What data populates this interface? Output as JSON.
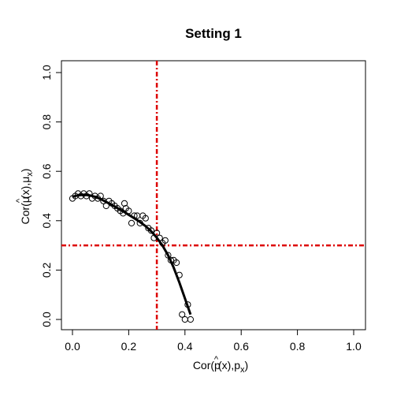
{
  "chart_data": {
    "type": "scatter",
    "title": "Setting 1",
    "xlabel": {
      "parts": [
        "Cor(",
        "p",
        "^",
        "(x),p",
        "x",
        ")"
      ]
    },
    "ylabel": {
      "parts": [
        "Cor(",
        "μ",
        "^",
        "(x),μ",
        "x",
        ")"
      ]
    },
    "xlim": [
      0,
      1
    ],
    "ylim": [
      0,
      1
    ],
    "x_ticks": [
      0.0,
      0.2,
      0.4,
      0.6,
      0.8,
      1.0
    ],
    "y_ticks": [
      0.0,
      0.2,
      0.4,
      0.6,
      0.8,
      1.0
    ],
    "x_tick_labels": [
      "0.0",
      "0.2",
      "0.4",
      "0.6",
      "0.8",
      "1.0"
    ],
    "y_tick_labels": [
      "0.0",
      "0.2",
      "0.4",
      "0.6",
      "0.8",
      "1.0"
    ],
    "grid": false,
    "points": [
      {
        "x": 0.0,
        "y": 0.49
      },
      {
        "x": 0.01,
        "y": 0.5
      },
      {
        "x": 0.02,
        "y": 0.51
      },
      {
        "x": 0.03,
        "y": 0.5
      },
      {
        "x": 0.04,
        "y": 0.51
      },
      {
        "x": 0.05,
        "y": 0.5
      },
      {
        "x": 0.06,
        "y": 0.51
      },
      {
        "x": 0.07,
        "y": 0.49
      },
      {
        "x": 0.08,
        "y": 0.5
      },
      {
        "x": 0.09,
        "y": 0.49
      },
      {
        "x": 0.1,
        "y": 0.5
      },
      {
        "x": 0.11,
        "y": 0.48
      },
      {
        "x": 0.12,
        "y": 0.46
      },
      {
        "x": 0.13,
        "y": 0.48
      },
      {
        "x": 0.14,
        "y": 0.47
      },
      {
        "x": 0.15,
        "y": 0.46
      },
      {
        "x": 0.16,
        "y": 0.45
      },
      {
        "x": 0.17,
        "y": 0.44
      },
      {
        "x": 0.18,
        "y": 0.43
      },
      {
        "x": 0.185,
        "y": 0.47
      },
      {
        "x": 0.19,
        "y": 0.45
      },
      {
        "x": 0.2,
        "y": 0.44
      },
      {
        "x": 0.21,
        "y": 0.39
      },
      {
        "x": 0.22,
        "y": 0.42
      },
      {
        "x": 0.23,
        "y": 0.42
      },
      {
        "x": 0.24,
        "y": 0.39
      },
      {
        "x": 0.25,
        "y": 0.42
      },
      {
        "x": 0.26,
        "y": 0.41
      },
      {
        "x": 0.27,
        "y": 0.37
      },
      {
        "x": 0.28,
        "y": 0.36
      },
      {
        "x": 0.29,
        "y": 0.33
      },
      {
        "x": 0.3,
        "y": 0.35
      },
      {
        "x": 0.31,
        "y": 0.33
      },
      {
        "x": 0.32,
        "y": 0.31
      },
      {
        "x": 0.33,
        "y": 0.32
      },
      {
        "x": 0.34,
        "y": 0.26
      },
      {
        "x": 0.35,
        "y": 0.24
      },
      {
        "x": 0.36,
        "y": 0.24
      },
      {
        "x": 0.37,
        "y": 0.23
      },
      {
        "x": 0.38,
        "y": 0.18
      },
      {
        "x": 0.39,
        "y": 0.02
      },
      {
        "x": 0.4,
        "y": 0.0
      },
      {
        "x": 0.41,
        "y": 0.06
      },
      {
        "x": 0.42,
        "y": 0.0
      }
    ],
    "fit_line": [
      {
        "x": 0.0,
        "y": 0.497
      },
      {
        "x": 0.02,
        "y": 0.503
      },
      {
        "x": 0.04,
        "y": 0.505
      },
      {
        "x": 0.06,
        "y": 0.503
      },
      {
        "x": 0.08,
        "y": 0.497
      },
      {
        "x": 0.1,
        "y": 0.488
      },
      {
        "x": 0.12,
        "y": 0.476
      },
      {
        "x": 0.14,
        "y": 0.464
      },
      {
        "x": 0.16,
        "y": 0.451
      },
      {
        "x": 0.18,
        "y": 0.438
      },
      {
        "x": 0.2,
        "y": 0.424
      },
      {
        "x": 0.22,
        "y": 0.41
      },
      {
        "x": 0.24,
        "y": 0.395
      },
      {
        "x": 0.26,
        "y": 0.378
      },
      {
        "x": 0.28,
        "y": 0.357
      },
      {
        "x": 0.3,
        "y": 0.331
      },
      {
        "x": 0.32,
        "y": 0.3
      },
      {
        "x": 0.34,
        "y": 0.26
      },
      {
        "x": 0.36,
        "y": 0.21
      },
      {
        "x": 0.38,
        "y": 0.15
      },
      {
        "x": 0.4,
        "y": 0.085
      },
      {
        "x": 0.42,
        "y": 0.02
      }
    ],
    "reference_lines": {
      "vertical_x": 0.3,
      "horizontal_y": 0.3,
      "color": "#dd0000",
      "style": "dashed"
    },
    "point_color": "#000000",
    "line_color": "#000000"
  }
}
